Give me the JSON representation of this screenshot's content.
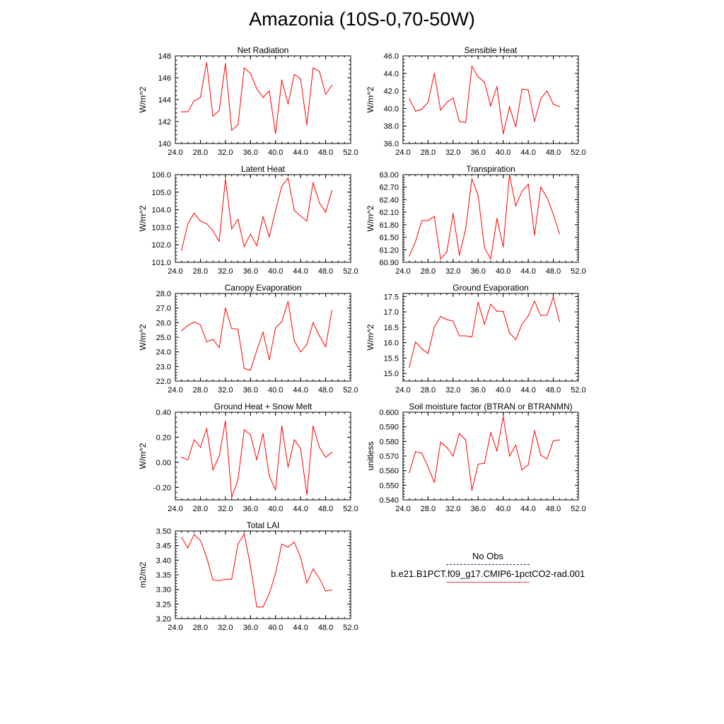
{
  "title": "Amazonia (10S-0,70-50W)",
  "colors": {
    "model": "#ff0000",
    "obs": "#2222aa"
  },
  "legend": {
    "obs_label": "No Obs",
    "model_label": "b.e21.B1PCT.f09_g17.CMIP6-1pctCO2-rad.001"
  },
  "chart_data": [
    {
      "type": "line",
      "title": "Net Radiation",
      "ylabel": "W/m^2",
      "xlim": [
        24,
        52
      ],
      "xticks": [
        24,
        28,
        32,
        36,
        40,
        44,
        48,
        52
      ],
      "xtick_labels": [
        "24.0",
        "28.0",
        "32.0",
        "36.0",
        "40.0",
        "44.0",
        "48.0",
        "52.0"
      ],
      "ylim": [
        140,
        148
      ],
      "yticks": [
        140,
        142,
        144,
        146,
        148
      ],
      "ytick_labels": [
        "140",
        "142",
        "144",
        "146",
        "148"
      ],
      "series": [
        {
          "x": [
            25,
            26,
            27,
            28,
            29,
            30,
            31,
            32,
            33,
            34,
            35,
            36,
            37,
            38,
            39,
            40,
            41,
            42,
            43,
            44,
            45,
            46,
            47,
            48,
            49
          ],
          "y": [
            142.9,
            142.9,
            143.9,
            144.2,
            147.4,
            142.5,
            143.0,
            147.3,
            141.2,
            141.7,
            146.9,
            146.4,
            145.0,
            144.2,
            144.8,
            140.9,
            145.8,
            143.6,
            146.3,
            145.9,
            141.7,
            146.9,
            146.6,
            144.5,
            145.3
          ]
        }
      ]
    },
    {
      "type": "line",
      "title": "Sensible Heat",
      "ylabel": "W/m^2",
      "xlim": [
        24,
        52
      ],
      "xticks": [
        24,
        28,
        32,
        36,
        40,
        44,
        48,
        52
      ],
      "xtick_labels": [
        "24.0",
        "28.0",
        "32.0",
        "36.0",
        "40.0",
        "44.0",
        "48.0",
        "52.0"
      ],
      "ylim": [
        36,
        46
      ],
      "yticks": [
        36,
        38,
        40,
        42,
        44,
        46
      ],
      "ytick_labels": [
        "36.0",
        "38.0",
        "40.0",
        "42.0",
        "44.0",
        "46.0"
      ],
      "series": [
        {
          "x": [
            25,
            26,
            27,
            28,
            29,
            30,
            31,
            32,
            33,
            34,
            35,
            36,
            37,
            38,
            39,
            40,
            41,
            42,
            43,
            44,
            45,
            46,
            47,
            48,
            49
          ],
          "y": [
            41.1,
            39.7,
            39.9,
            40.7,
            44.0,
            39.8,
            40.7,
            41.2,
            38.5,
            38.4,
            44.8,
            43.6,
            43.0,
            40.3,
            42.5,
            37.1,
            40.2,
            37.9,
            42.2,
            42.1,
            38.5,
            41.1,
            42.0,
            40.5,
            40.2
          ]
        }
      ]
    },
    {
      "type": "line",
      "title": "Latent Heat",
      "ylabel": "W/m^2",
      "xlim": [
        24,
        52
      ],
      "xticks": [
        24,
        28,
        32,
        36,
        40,
        44,
        48,
        52
      ],
      "xtick_labels": [
        "24.0",
        "28.0",
        "32.0",
        "36.0",
        "40.0",
        "44.0",
        "48.0",
        "52.0"
      ],
      "ylim": [
        101,
        106
      ],
      "yticks": [
        101,
        102,
        103,
        104,
        105,
        106
      ],
      "ytick_labels": [
        "101.0",
        "102.0",
        "103.0",
        "104.0",
        "105.0",
        "106.0"
      ],
      "series": [
        {
          "x": [
            25,
            26,
            27,
            28,
            29,
            30,
            31,
            32,
            33,
            34,
            35,
            36,
            37,
            38,
            39,
            40,
            41,
            42,
            43,
            44,
            45,
            46,
            47,
            48,
            49
          ],
          "y": [
            101.7,
            103.2,
            103.8,
            103.35,
            103.2,
            102.8,
            102.2,
            105.75,
            102.9,
            103.45,
            101.9,
            102.6,
            101.95,
            103.6,
            102.45,
            103.95,
            105.35,
            105.8,
            103.95,
            103.65,
            103.35,
            105.55,
            104.4,
            103.85,
            105.1
          ]
        }
      ]
    },
    {
      "type": "line",
      "title": "Transpiration",
      "ylabel": "W/m^2",
      "xlim": [
        24,
        52
      ],
      "xticks": [
        24,
        28,
        32,
        36,
        40,
        44,
        48,
        52
      ],
      "xtick_labels": [
        "24.0",
        "28.0",
        "32.0",
        "36.0",
        "40.0",
        "44.0",
        "48.0",
        "52.0"
      ],
      "ylim": [
        60.9,
        63.0
      ],
      "yticks": [
        60.9,
        61.2,
        61.5,
        61.8,
        62.1,
        62.4,
        62.7,
        63.0
      ],
      "ytick_labels": [
        "60.90",
        "61.20",
        "61.50",
        "61.80",
        "62.10",
        "62.40",
        "62.70",
        "63.00"
      ],
      "series": [
        {
          "x": [
            25,
            26,
            27,
            28,
            29,
            30,
            31,
            32,
            33,
            34,
            35,
            36,
            37,
            38,
            39,
            40,
            41,
            42,
            43,
            44,
            45,
            46,
            47,
            48,
            49
          ],
          "y": [
            61.05,
            61.4,
            61.9,
            61.9,
            62.0,
            60.98,
            61.15,
            62.07,
            61.07,
            61.7,
            62.9,
            62.5,
            61.25,
            60.98,
            61.95,
            61.27,
            63.0,
            62.25,
            62.6,
            62.77,
            61.55,
            62.7,
            62.45,
            62.05,
            61.58
          ]
        }
      ]
    },
    {
      "type": "line",
      "title": "Canopy Evaporation",
      "ylabel": "W/m^2",
      "xlim": [
        24,
        52
      ],
      "xticks": [
        24,
        28,
        32,
        36,
        40,
        44,
        48,
        52
      ],
      "xtick_labels": [
        "24.0",
        "28.0",
        "32.0",
        "36.0",
        "40.0",
        "44.0",
        "48.0",
        "52.0"
      ],
      "ylim": [
        22,
        28
      ],
      "yticks": [
        22,
        23,
        24,
        25,
        26,
        27,
        28
      ],
      "ytick_labels": [
        "22.0",
        "23.0",
        "24.0",
        "25.0",
        "26.0",
        "27.0",
        "28.0"
      ],
      "series": [
        {
          "x": [
            25,
            26,
            27,
            28,
            29,
            30,
            31,
            32,
            33,
            34,
            35,
            36,
            37,
            38,
            39,
            40,
            41,
            42,
            43,
            44,
            45,
            46,
            47,
            48,
            49
          ],
          "y": [
            25.45,
            25.8,
            26.05,
            25.85,
            24.7,
            24.85,
            24.3,
            27.0,
            25.6,
            25.55,
            22.85,
            22.75,
            24.1,
            25.35,
            23.45,
            25.65,
            26.05,
            27.45,
            24.75,
            24.0,
            24.5,
            26.0,
            25.1,
            24.35,
            26.85
          ]
        }
      ]
    },
    {
      "type": "line",
      "title": "Ground Evaporation",
      "ylabel": "W/m^2",
      "xlim": [
        24,
        52
      ],
      "xticks": [
        24,
        28,
        32,
        36,
        40,
        44,
        48,
        52
      ],
      "xtick_labels": [
        "24.0",
        "28.0",
        "32.0",
        "36.0",
        "40.0",
        "44.0",
        "48.0",
        "52.0"
      ],
      "ylim": [
        14.75,
        17.6
      ],
      "yticks": [
        15.0,
        15.5,
        16.0,
        16.5,
        17.0,
        17.5
      ],
      "ytick_labels": [
        "15.0",
        "15.5",
        "16.0",
        "16.5",
        "17.0",
        "17.5"
      ],
      "series": [
        {
          "x": [
            25,
            26,
            27,
            28,
            29,
            30,
            31,
            32,
            33,
            34,
            35,
            36,
            37,
            38,
            39,
            40,
            41,
            42,
            43,
            44,
            45,
            46,
            47,
            48,
            49
          ],
          "y": [
            15.2,
            16.02,
            15.8,
            15.65,
            16.5,
            16.85,
            16.75,
            16.7,
            16.22,
            16.22,
            16.18,
            17.32,
            16.6,
            17.25,
            17.02,
            17.02,
            16.32,
            16.1,
            16.6,
            16.87,
            17.35,
            16.88,
            16.9,
            17.48,
            16.68
          ]
        }
      ]
    },
    {
      "type": "line",
      "title": "Ground Heat + Snow Melt",
      "ylabel": "W/m^2",
      "xlim": [
        24,
        52
      ],
      "xticks": [
        24,
        28,
        32,
        36,
        40,
        44,
        48,
        52
      ],
      "xtick_labels": [
        "24.0",
        "28.0",
        "32.0",
        "36.0",
        "40.0",
        "44.0",
        "48.0",
        "52.0"
      ],
      "ylim": [
        -0.3,
        0.4
      ],
      "yticks": [
        -0.2,
        0.0,
        0.2,
        0.4
      ],
      "ytick_labels": [
        "-0.20",
        "0.00",
        "0.20",
        "0.40"
      ],
      "series": [
        {
          "x": [
            25,
            26,
            27,
            28,
            29,
            30,
            31,
            32,
            33,
            34,
            35,
            36,
            37,
            38,
            39,
            40,
            41,
            42,
            43,
            44,
            45,
            46,
            47,
            48,
            49
          ],
          "y": [
            0.04,
            0.02,
            0.18,
            0.12,
            0.27,
            -0.06,
            0.05,
            0.33,
            -0.28,
            -0.14,
            0.26,
            0.22,
            0.02,
            0.23,
            -0.11,
            -0.22,
            0.29,
            -0.04,
            0.18,
            0.11,
            -0.26,
            0.29,
            0.12,
            0.04,
            0.08
          ]
        }
      ]
    },
    {
      "type": "line",
      "title": "Soil moisture factor (BTRAN or BTRANMN)",
      "ylabel": "unitless",
      "xlim": [
        24,
        52
      ],
      "xticks": [
        24,
        28,
        32,
        36,
        40,
        44,
        48,
        52
      ],
      "xtick_labels": [
        "24.0",
        "28.0",
        "32.0",
        "36.0",
        "40.0",
        "44.0",
        "48.0",
        "52.0"
      ],
      "ylim": [
        0.54,
        0.6
      ],
      "yticks": [
        0.54,
        0.55,
        0.56,
        0.57,
        0.58,
        0.59,
        0.6
      ],
      "ytick_labels": [
        "0.540",
        "0.550",
        "0.560",
        "0.570",
        "0.580",
        "0.590",
        "0.600"
      ],
      "series": [
        {
          "x": [
            25,
            26,
            27,
            28,
            29,
            30,
            31,
            32,
            33,
            34,
            35,
            36,
            37,
            38,
            39,
            40,
            41,
            42,
            43,
            44,
            45,
            46,
            47,
            48,
            49
          ],
          "y": [
            0.5585,
            0.573,
            0.572,
            0.5625,
            0.552,
            0.5795,
            0.576,
            0.57,
            0.5855,
            0.581,
            0.5465,
            0.5645,
            0.565,
            0.586,
            0.5735,
            0.597,
            0.57,
            0.5775,
            0.5605,
            0.564,
            0.5875,
            0.5705,
            0.568,
            0.5805,
            0.581
          ]
        }
      ]
    },
    {
      "type": "line",
      "title": "Total LAI",
      "ylabel": "m2/m2",
      "xlim": [
        24,
        52
      ],
      "xticks": [
        24,
        28,
        32,
        36,
        40,
        44,
        48,
        52
      ],
      "xtick_labels": [
        "24.0",
        "28.0",
        "32.0",
        "36.0",
        "40.0",
        "44.0",
        "48.0",
        "52.0"
      ],
      "ylim": [
        3.2,
        3.5
      ],
      "yticks": [
        3.2,
        3.25,
        3.3,
        3.35,
        3.4,
        3.45,
        3.5
      ],
      "ytick_labels": [
        "3.20",
        "3.25",
        "3.30",
        "3.35",
        "3.40",
        "3.45",
        "3.50"
      ],
      "series": [
        {
          "x": [
            25,
            26,
            27,
            28,
            29,
            30,
            31,
            32,
            33,
            34,
            35,
            36,
            37,
            38,
            39,
            40,
            41,
            42,
            43,
            44,
            45,
            46,
            47,
            48,
            49
          ],
          "y": [
            3.478,
            3.442,
            3.488,
            3.468,
            3.41,
            3.332,
            3.33,
            3.335,
            3.335,
            3.455,
            3.49,
            3.38,
            3.24,
            3.24,
            3.285,
            3.355,
            3.455,
            3.445,
            3.462,
            3.41,
            3.322,
            3.37,
            3.338,
            3.295,
            3.298
          ]
        }
      ]
    }
  ]
}
